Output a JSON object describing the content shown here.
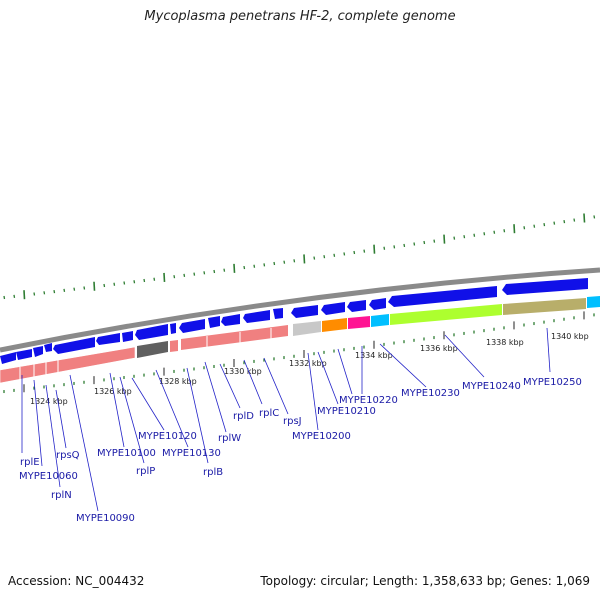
{
  "title": "Mycoplasma penetrans HF-2, complete genome",
  "accession": "Accession: NC_004432",
  "summary": "Topology: circular; Length: 1,358,633 bp; Genes: 1,069",
  "kbp_labels": [
    "1324 kbp",
    "1326 kbp",
    "1328 kbp",
    "1330 kbp",
    "1332 kbp",
    "1334 kbp",
    "1336 kbp",
    "1338 kbp",
    "1340 kbp"
  ],
  "genes": {
    "rplE": "rplE",
    "MYPE10060": "MYPE10060",
    "rplN": "rplN",
    "rpsQ": "rpsQ",
    "MYPE10090": "MYPE10090",
    "MYPE10100": "MYPE10100",
    "rplP": "rplP",
    "MYPE10120": "MYPE10120",
    "MYPE10130": "MYPE10130",
    "rplB": "rplB",
    "rplW": "rplW",
    "rplD": "rplD",
    "rplC": "rplC",
    "rpsJ": "rpsJ",
    "MYPE10200": "MYPE10200",
    "MYPE10210": "MYPE10210",
    "MYPE10220": "MYPE10220",
    "MYPE10230": "MYPE10230",
    "MYPE10240": "MYPE10240",
    "MYPE10250": "MYPE10250"
  },
  "colors": {
    "cds": "#1010e8",
    "rrna": "#f08080",
    "gray_dark": "#606060",
    "gray_light": "#c8c8c8",
    "orange": "#ff8c00",
    "magenta": "#ff1493",
    "cyan": "#00bfff",
    "lime": "#adff2f",
    "khaki": "#b8ae6a",
    "tick": "#2e7d32",
    "label": "#1a1aa6"
  }
}
